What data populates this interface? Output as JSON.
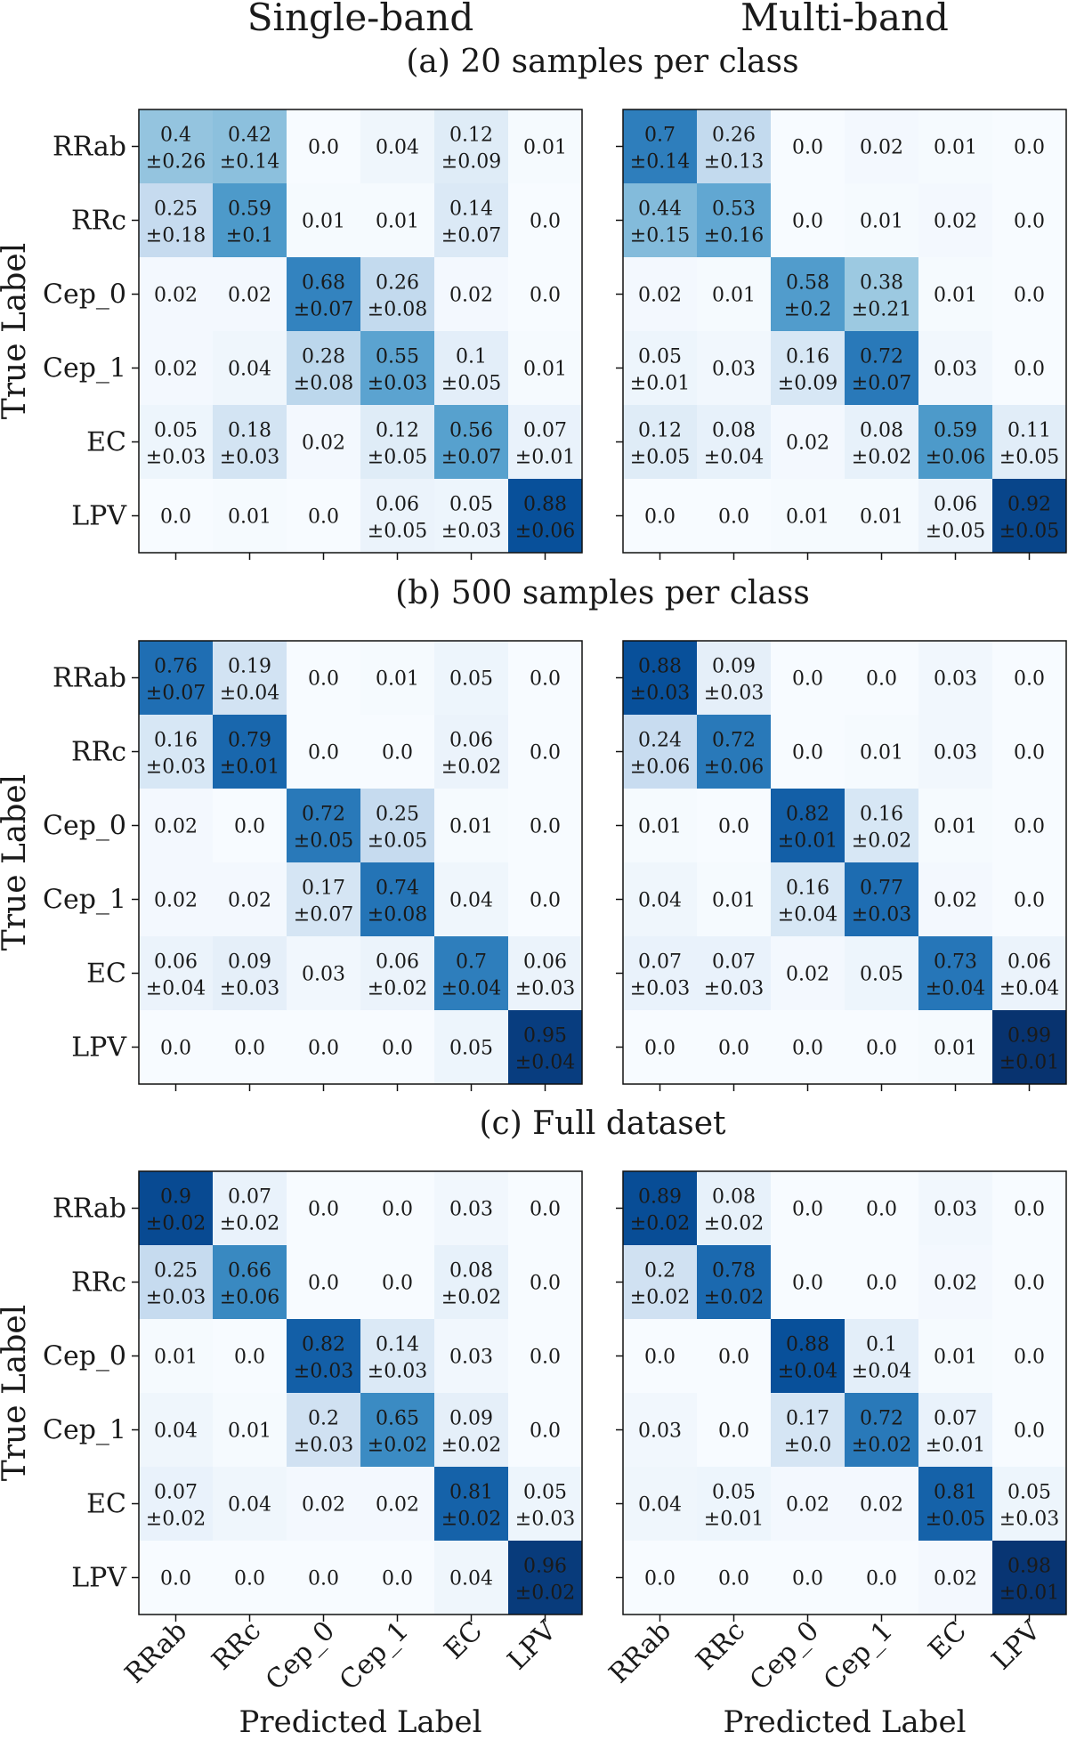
{
  "chart_data": {
    "type": "heatmap",
    "column_titles": [
      "Single-band",
      "Multi-band"
    ],
    "classes": [
      "RRab",
      "RRc",
      "Cep_0",
      "Cep_1",
      "EC",
      "LPV"
    ],
    "ylabel": "True Label",
    "xlabel": "Predicted Label",
    "value_range": [
      0,
      1
    ],
    "colormap": "Blues",
    "sections": [
      {
        "title": "(a) 20 samples per class",
        "panels": [
          {
            "name": "Single-band",
            "values": [
              [
                0.4,
                0.42,
                0.0,
                0.04,
                0.12,
                0.01
              ],
              [
                0.25,
                0.59,
                0.01,
                0.01,
                0.14,
                0.0
              ],
              [
                0.02,
                0.02,
                0.68,
                0.26,
                0.02,
                0.0
              ],
              [
                0.02,
                0.04,
                0.28,
                0.55,
                0.1,
                0.01
              ],
              [
                0.05,
                0.18,
                0.02,
                0.12,
                0.56,
                0.07
              ],
              [
                0.0,
                0.01,
                0.0,
                0.06,
                0.05,
                0.88
              ]
            ],
            "errors": [
              [
                "±0.26",
                "±0.14",
                "",
                "",
                "±0.09",
                ""
              ],
              [
                "±0.18",
                "±0.1",
                "",
                "",
                "±0.07",
                ""
              ],
              [
                "",
                "",
                "±0.07",
                "±0.08",
                "",
                ""
              ],
              [
                "",
                "",
                "±0.08",
                "±0.03",
                "±0.05",
                ""
              ],
              [
                "±0.03",
                "±0.03",
                "",
                "±0.05",
                "±0.07",
                "±0.01"
              ],
              [
                "",
                "",
                "",
                "±0.05",
                "±0.03",
                "±0.06"
              ]
            ]
          },
          {
            "name": "Multi-band",
            "values": [
              [
                0.7,
                0.26,
                0.0,
                0.02,
                0.01,
                0.0
              ],
              [
                0.44,
                0.53,
                0.0,
                0.01,
                0.02,
                0.0
              ],
              [
                0.02,
                0.01,
                0.58,
                0.38,
                0.01,
                0.0
              ],
              [
                0.05,
                0.03,
                0.16,
                0.72,
                0.03,
                0.0
              ],
              [
                0.12,
                0.08,
                0.02,
                0.08,
                0.59,
                0.11
              ],
              [
                0.0,
                0.0,
                0.01,
                0.01,
                0.06,
                0.92
              ]
            ],
            "errors": [
              [
                "±0.14",
                "±0.13",
                "",
                "",
                "",
                ""
              ],
              [
                "±0.15",
                "±0.16",
                "",
                "",
                "",
                ""
              ],
              [
                "",
                "",
                "±0.2",
                "±0.21",
                "",
                ""
              ],
              [
                "±0.01",
                "",
                "±0.09",
                "±0.07",
                "",
                ""
              ],
              [
                "±0.05",
                "±0.04",
                "",
                "±0.02",
                "±0.06",
                "±0.05"
              ],
              [
                "",
                "",
                "",
                "",
                "±0.05",
                "±0.05"
              ]
            ]
          }
        ]
      },
      {
        "title": "(b) 500 samples per class",
        "panels": [
          {
            "name": "Single-band",
            "values": [
              [
                0.76,
                0.19,
                0.0,
                0.01,
                0.05,
                0.0
              ],
              [
                0.16,
                0.79,
                0.0,
                0.0,
                0.06,
                0.0
              ],
              [
                0.02,
                0.0,
                0.72,
                0.25,
                0.01,
                0.0
              ],
              [
                0.02,
                0.02,
                0.17,
                0.74,
                0.04,
                0.0
              ],
              [
                0.06,
                0.09,
                0.03,
                0.06,
                0.7,
                0.06
              ],
              [
                0.0,
                0.0,
                0.0,
                0.0,
                0.05,
                0.95
              ]
            ],
            "errors": [
              [
                "±0.07",
                "±0.04",
                "",
                "",
                "",
                ""
              ],
              [
                "±0.03",
                "±0.01",
                "",
                "",
                "±0.02",
                ""
              ],
              [
                "",
                "",
                "±0.05",
                "±0.05",
                "",
                ""
              ],
              [
                "",
                "",
                "±0.07",
                "±0.08",
                "",
                ""
              ],
              [
                "±0.04",
                "±0.03",
                "",
                "±0.02",
                "±0.04",
                "±0.03"
              ],
              [
                "",
                "",
                "",
                "",
                "",
                "±0.04"
              ]
            ]
          },
          {
            "name": "Multi-band",
            "values": [
              [
                0.88,
                0.09,
                0.0,
                0.0,
                0.03,
                0.0
              ],
              [
                0.24,
                0.72,
                0.0,
                0.01,
                0.03,
                0.0
              ],
              [
                0.01,
                0.0,
                0.82,
                0.16,
                0.01,
                0.0
              ],
              [
                0.04,
                0.01,
                0.16,
                0.77,
                0.02,
                0.0
              ],
              [
                0.07,
                0.07,
                0.02,
                0.05,
                0.73,
                0.06
              ],
              [
                0.0,
                0.0,
                0.0,
                0.0,
                0.01,
                0.99
              ]
            ],
            "errors": [
              [
                "±0.03",
                "±0.03",
                "",
                "",
                "",
                ""
              ],
              [
                "±0.06",
                "±0.06",
                "",
                "",
                "",
                ""
              ],
              [
                "",
                "",
                "±0.01",
                "±0.02",
                "",
                ""
              ],
              [
                "",
                "",
                "±0.04",
                "±0.03",
                "",
                ""
              ],
              [
                "±0.03",
                "±0.03",
                "",
                "",
                "±0.04",
                "±0.04"
              ],
              [
                "",
                "",
                "",
                "",
                "",
                "±0.01"
              ]
            ]
          }
        ]
      },
      {
        "title": "(c) Full dataset",
        "panels": [
          {
            "name": "Single-band",
            "values": [
              [
                0.9,
                0.07,
                0.0,
                0.0,
                0.03,
                0.0
              ],
              [
                0.25,
                0.66,
                0.0,
                0.0,
                0.08,
                0.0
              ],
              [
                0.01,
                0.0,
                0.82,
                0.14,
                0.03,
                0.0
              ],
              [
                0.04,
                0.01,
                0.2,
                0.65,
                0.09,
                0.0
              ],
              [
                0.07,
                0.04,
                0.02,
                0.02,
                0.81,
                0.05
              ],
              [
                0.0,
                0.0,
                0.0,
                0.0,
                0.04,
                0.96
              ]
            ],
            "errors": [
              [
                "±0.02",
                "±0.02",
                "",
                "",
                "",
                ""
              ],
              [
                "±0.03",
                "±0.06",
                "",
                "",
                "±0.02",
                ""
              ],
              [
                "",
                "",
                "±0.03",
                "±0.03",
                "",
                ""
              ],
              [
                "",
                "",
                "±0.03",
                "±0.02",
                "±0.02",
                ""
              ],
              [
                "±0.02",
                "",
                "",
                "",
                "±0.02",
                "±0.03"
              ],
              [
                "",
                "",
                "",
                "",
                "",
                "±0.02"
              ]
            ]
          },
          {
            "name": "Multi-band",
            "values": [
              [
                0.89,
                0.08,
                0.0,
                0.0,
                0.03,
                0.0
              ],
              [
                0.2,
                0.78,
                0.0,
                0.0,
                0.02,
                0.0
              ],
              [
                0.0,
                0.0,
                0.88,
                0.1,
                0.01,
                0.0
              ],
              [
                0.03,
                0.0,
                0.17,
                0.72,
                0.07,
                0.0
              ],
              [
                0.04,
                0.05,
                0.02,
                0.02,
                0.81,
                0.05
              ],
              [
                0.0,
                0.0,
                0.0,
                0.0,
                0.02,
                0.98
              ]
            ],
            "errors": [
              [
                "±0.02",
                "±0.02",
                "",
                "",
                "",
                ""
              ],
              [
                "±0.02",
                "±0.02",
                "",
                "",
                "",
                ""
              ],
              [
                "",
                "",
                "±0.04",
                "±0.04",
                "",
                ""
              ],
              [
                "",
                "",
                "±0.0",
                "±0.02",
                "±0.01",
                ""
              ],
              [
                "",
                "±0.01",
                "",
                "",
                "±0.05",
                "±0.03"
              ],
              [
                "",
                "",
                "",
                "",
                "",
                "±0.01"
              ]
            ]
          }
        ]
      }
    ]
  }
}
